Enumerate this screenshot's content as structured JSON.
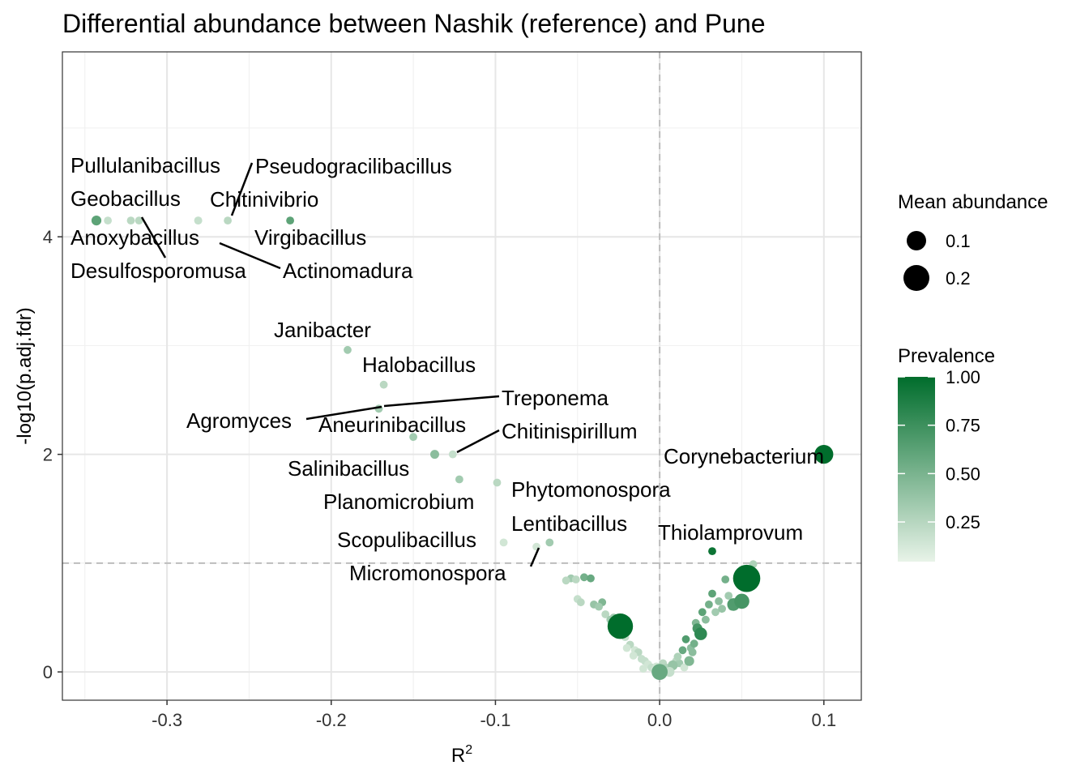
{
  "chart_data": {
    "type": "scatter",
    "title": "Differential abundance between Nashik (reference) and Pune",
    "xlabel": "R",
    "xlabel_superscript": "2",
    "ylabel": "-log10(p.adj.fdr)",
    "xlim": [
      -0.3637,
      0.1228
    ],
    "ylim": [
      -0.26,
      5.7
    ],
    "x_ticks": [
      -0.3,
      -0.2,
      -0.1,
      0.0,
      0.1
    ],
    "x_tick_labels": [
      "-0.3",
      "-0.2",
      "-0.1",
      "0.0",
      "0.1"
    ],
    "y_ticks": [
      0,
      2,
      4
    ],
    "y_tick_labels": [
      "0",
      "2",
      "4"
    ],
    "reference_lines": {
      "x": 0,
      "y": 1
    },
    "grid": true,
    "size_legend": {
      "title": "Mean abundance",
      "entries": [
        {
          "label": "0.1",
          "value": 0.1
        },
        {
          "label": "0.2",
          "value": 0.2
        }
      ]
    },
    "color_legend": {
      "title": "Prevalence",
      "low_color": "#e8f3e8",
      "high_color": "#006d2c",
      "ticks": [
        {
          "label": "1.00",
          "value": 1.0
        },
        {
          "label": "0.75",
          "value": 0.75
        },
        {
          "label": "0.50",
          "value": 0.5
        },
        {
          "label": "0.25",
          "value": 0.25
        }
      ]
    },
    "labeled_points": [
      {
        "label": "Pullulanibacillus",
        "x": -0.322,
        "y": 4.15,
        "prevalence": 0.2,
        "abundance": 0.02
      },
      {
        "label": "Geobacillus",
        "x": -0.343,
        "y": 4.15,
        "prevalence": 0.6,
        "abundance": 0.03
      },
      {
        "label": "Anoxybacillus",
        "x": -0.336,
        "y": 4.15,
        "prevalence": 0.15,
        "abundance": 0.02
      },
      {
        "label": "Desulfosporomusa",
        "x": -0.317,
        "y": 4.15,
        "prevalence": 0.2,
        "abundance": 0.02
      },
      {
        "label": "Pseudogracilibacillus",
        "x": -0.263,
        "y": 4.15,
        "prevalence": 0.2,
        "abundance": 0.02
      },
      {
        "label": "Chitinivibrio",
        "x": -0.281,
        "y": 4.15,
        "prevalence": 0.15,
        "abundance": 0.02
      },
      {
        "label": "Virgibacillus",
        "x": -0.225,
        "y": 4.15,
        "prevalence": 0.6,
        "abundance": 0.02
      },
      {
        "label": "Actinomadura",
        "x": -0.281,
        "y": 4.15,
        "prevalence": 0.15,
        "abundance": 0.02
      },
      {
        "label": "Janibacter",
        "x": -0.19,
        "y": 2.96,
        "prevalence": 0.3,
        "abundance": 0.02
      },
      {
        "label": "Halobacillus",
        "x": -0.168,
        "y": 2.64,
        "prevalence": 0.2,
        "abundance": 0.02
      },
      {
        "label": "Treponema",
        "x": -0.171,
        "y": 2.42,
        "prevalence": 0.3,
        "abundance": 0.02
      },
      {
        "label": "Agromyces",
        "x": -0.171,
        "y": 2.42,
        "prevalence": 0.3,
        "abundance": 0.02
      },
      {
        "label": "Aneurinibacillus",
        "x": -0.15,
        "y": 2.16,
        "prevalence": 0.3,
        "abundance": 0.02
      },
      {
        "label": "Chitinispirillum",
        "x": -0.126,
        "y": 2.0,
        "prevalence": 0.15,
        "abundance": 0.02
      },
      {
        "label": "Salinibacillus",
        "x": -0.137,
        "y": 2.0,
        "prevalence": 0.4,
        "abundance": 0.025
      },
      {
        "label": "Corynebacterium",
        "x": 0.1,
        "y": 2.0,
        "prevalence": 1.0,
        "abundance": 0.11
      },
      {
        "label": "Planomicrobium",
        "x": -0.122,
        "y": 1.77,
        "prevalence": 0.3,
        "abundance": 0.02
      },
      {
        "label": "Phytomonospora",
        "x": -0.099,
        "y": 1.74,
        "prevalence": 0.2,
        "abundance": 0.02
      },
      {
        "label": "Lentibacillus",
        "x": -0.067,
        "y": 1.19,
        "prevalence": 0.3,
        "abundance": 0.02
      },
      {
        "label": "Thiolamprovum",
        "x": 0.032,
        "y": 1.11,
        "prevalence": 0.95,
        "abundance": 0.02
      },
      {
        "label": "Scopulibacillus",
        "x": -0.095,
        "y": 1.19,
        "prevalence": 0.1,
        "abundance": 0.02
      },
      {
        "label": "Micromonospora",
        "x": -0.075,
        "y": 1.15,
        "prevalence": 0.1,
        "abundance": 0.02
      }
    ],
    "other_points": [
      {
        "x": -0.054,
        "y": 0.86,
        "prevalence": 0.3,
        "abundance": 0.02
      },
      {
        "x": -0.057,
        "y": 0.84,
        "prevalence": 0.2,
        "abundance": 0.02
      },
      {
        "x": -0.046,
        "y": 0.87,
        "prevalence": 0.5,
        "abundance": 0.02
      },
      {
        "x": -0.042,
        "y": 0.86,
        "prevalence": 0.55,
        "abundance": 0.02
      },
      {
        "x": -0.051,
        "y": 0.85,
        "prevalence": 0.2,
        "abundance": 0.02
      },
      {
        "x": -0.05,
        "y": 0.67,
        "prevalence": 0.15,
        "abundance": 0.02
      },
      {
        "x": -0.048,
        "y": 0.64,
        "prevalence": 0.2,
        "abundance": 0.02
      },
      {
        "x": -0.04,
        "y": 0.62,
        "prevalence": 0.35,
        "abundance": 0.02
      },
      {
        "x": -0.035,
        "y": 0.64,
        "prevalence": 0.45,
        "abundance": 0.02
      },
      {
        "x": -0.037,
        "y": 0.6,
        "prevalence": 0.3,
        "abundance": 0.02
      },
      {
        "x": -0.033,
        "y": 0.53,
        "prevalence": 0.2,
        "abundance": 0.02
      },
      {
        "x": -0.03,
        "y": 0.48,
        "prevalence": 0.3,
        "abundance": 0.02
      },
      {
        "x": -0.024,
        "y": 0.42,
        "prevalence": 1.0,
        "abundance": 0.2
      },
      {
        "x": -0.025,
        "y": 0.49,
        "prevalence": 0.25,
        "abundance": 0.02
      },
      {
        "x": -0.021,
        "y": 0.32,
        "prevalence": 0.15,
        "abundance": 0.02
      },
      {
        "x": -0.018,
        "y": 0.25,
        "prevalence": 0.2,
        "abundance": 0.02
      },
      {
        "x": -0.015,
        "y": 0.2,
        "prevalence": 0.1,
        "abundance": 0.02
      },
      {
        "x": -0.013,
        "y": 0.18,
        "prevalence": 0.2,
        "abundance": 0.02
      },
      {
        "x": -0.011,
        "y": 0.12,
        "prevalence": 0.15,
        "abundance": 0.02
      },
      {
        "x": -0.009,
        "y": 0.1,
        "prevalence": 0.15,
        "abundance": 0.02
      },
      {
        "x": -0.007,
        "y": 0.07,
        "prevalence": 0.1,
        "abundance": 0.02
      },
      {
        "x": -0.005,
        "y": 0.04,
        "prevalence": 0.15,
        "abundance": 0.02
      },
      {
        "x": -0.003,
        "y": 0.02,
        "prevalence": 0.1,
        "abundance": 0.02
      },
      {
        "x": 0.0,
        "y": 0.0,
        "prevalence": 0.55,
        "abundance": 0.08
      },
      {
        "x": 0.004,
        "y": 0.03,
        "prevalence": 0.25,
        "abundance": 0.03
      },
      {
        "x": 0.008,
        "y": 0.06,
        "prevalence": 0.35,
        "abundance": 0.03
      },
      {
        "x": 0.01,
        "y": 0.1,
        "prevalence": 0.2,
        "abundance": 0.02
      },
      {
        "x": 0.012,
        "y": 0.08,
        "prevalence": 0.3,
        "abundance": 0.02
      },
      {
        "x": 0.014,
        "y": 0.2,
        "prevalence": 0.55,
        "abundance": 0.02
      },
      {
        "x": 0.016,
        "y": 0.3,
        "prevalence": 0.65,
        "abundance": 0.02
      },
      {
        "x": 0.018,
        "y": 0.1,
        "prevalence": 0.45,
        "abundance": 0.03
      },
      {
        "x": 0.019,
        "y": 0.22,
        "prevalence": 0.4,
        "abundance": 0.02
      },
      {
        "x": 0.02,
        "y": 0.18,
        "prevalence": 0.4,
        "abundance": 0.02
      },
      {
        "x": 0.021,
        "y": 0.26,
        "prevalence": 0.5,
        "abundance": 0.02
      },
      {
        "x": 0.023,
        "y": 0.4,
        "prevalence": 0.7,
        "abundance": 0.03
      },
      {
        "x": 0.025,
        "y": 0.35,
        "prevalence": 0.8,
        "abundance": 0.05
      },
      {
        "x": 0.026,
        "y": 0.55,
        "prevalence": 0.6,
        "abundance": 0.02
      },
      {
        "x": 0.028,
        "y": 0.48,
        "prevalence": 0.4,
        "abundance": 0.02
      },
      {
        "x": 0.03,
        "y": 0.62,
        "prevalence": 0.5,
        "abundance": 0.02
      },
      {
        "x": 0.032,
        "y": 0.72,
        "prevalence": 0.6,
        "abundance": 0.02
      },
      {
        "x": 0.034,
        "y": 0.55,
        "prevalence": 0.3,
        "abundance": 0.02
      },
      {
        "x": 0.036,
        "y": 0.65,
        "prevalence": 0.4,
        "abundance": 0.02
      },
      {
        "x": 0.038,
        "y": 0.58,
        "prevalence": 0.35,
        "abundance": 0.02
      },
      {
        "x": 0.04,
        "y": 0.85,
        "prevalence": 0.5,
        "abundance": 0.02
      },
      {
        "x": 0.042,
        "y": 0.7,
        "prevalence": 0.3,
        "abundance": 0.02
      },
      {
        "x": 0.044,
        "y": 0.6,
        "prevalence": 0.4,
        "abundance": 0.02
      },
      {
        "x": 0.045,
        "y": 0.62,
        "prevalence": 0.65,
        "abundance": 0.05
      },
      {
        "x": 0.05,
        "y": 0.65,
        "prevalence": 0.7,
        "abundance": 0.07
      },
      {
        "x": 0.053,
        "y": 0.86,
        "prevalence": 1.0,
        "abundance": 0.23
      },
      {
        "x": 0.057,
        "y": 0.99,
        "prevalence": 0.25,
        "abundance": 0.02
      },
      {
        "x": -0.002,
        "y": 0.05,
        "prevalence": 0.1,
        "abundance": 0.02
      },
      {
        "x": 0.002,
        "y": 0.08,
        "prevalence": 0.2,
        "abundance": 0.02
      },
      {
        "x": 0.006,
        "y": 0.0,
        "prevalence": 0.15,
        "abundance": 0.03
      },
      {
        "x": -0.01,
        "y": 0.03,
        "prevalence": 0.1,
        "abundance": 0.02
      },
      {
        "x": 0.015,
        "y": 0.04,
        "prevalence": 0.1,
        "abundance": 0.02
      },
      {
        "x": 0.011,
        "y": 0.14,
        "prevalence": 0.25,
        "abundance": 0.02
      },
      {
        "x": -0.016,
        "y": 0.15,
        "prevalence": 0.1,
        "abundance": 0.02
      },
      {
        "x": -0.02,
        "y": 0.22,
        "prevalence": 0.1,
        "abundance": 0.02
      },
      {
        "x": -0.028,
        "y": 0.5,
        "prevalence": 0.3,
        "abundance": 0.02
      },
      {
        "x": 0.022,
        "y": 0.45,
        "prevalence": 0.45,
        "abundance": 0.02
      }
    ]
  }
}
